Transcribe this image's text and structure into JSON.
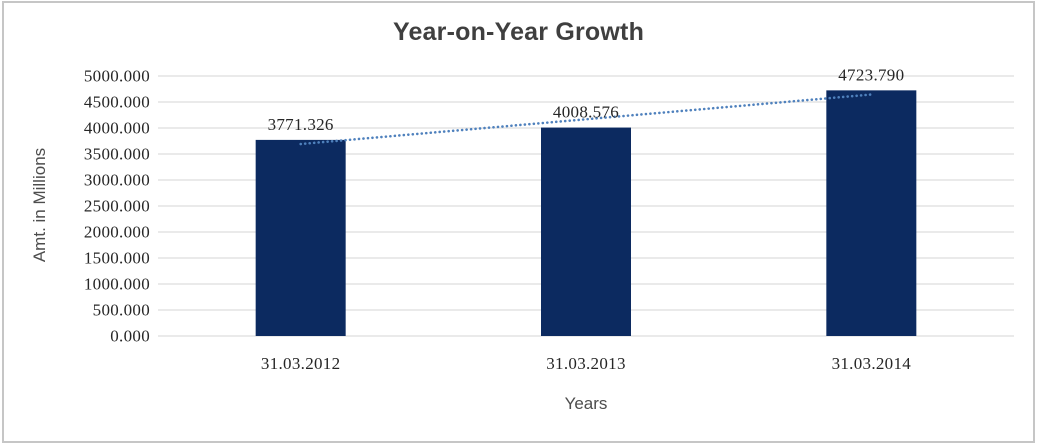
{
  "window": {
    "background": "#ffffff",
    "frame_border_color": "#c6c6c6"
  },
  "chart_data": {
    "type": "bar",
    "title": "Year-on-Year Growth",
    "xlabel": "Years",
    "ylabel": "Amt. in Millions",
    "categories": [
      "31.03.2012",
      "31.03.2013",
      "31.03.2014"
    ],
    "values": [
      3771.326,
      4008.576,
      4723.79
    ],
    "data_labels": [
      "3771.326",
      "4008.576",
      "4723.790"
    ],
    "ylim": [
      0,
      5000
    ],
    "ytick_step": 500,
    "ytick_labels": [
      "0.000",
      "500.000",
      "1000.000",
      "1500.000",
      "2000.000",
      "2500.000",
      "3000.000",
      "3500.000",
      "4000.000",
      "4500.000",
      "5000.000"
    ],
    "grid": true,
    "legend": "none",
    "bar_color": "#0c2a60",
    "gridline_color": "#d6d6d6",
    "trendline": {
      "type": "linear",
      "style": "dotted",
      "color": "#4f81bd"
    }
  }
}
